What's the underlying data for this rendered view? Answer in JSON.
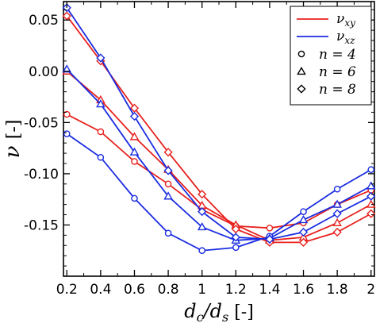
{
  "chart_data": {
    "type": "line",
    "xlabel": "d_c/d_s [-]",
    "ylabel": "ν [-]",
    "x": [
      0.2,
      0.4,
      0.6,
      0.8,
      1.0,
      1.2,
      1.4,
      1.6,
      1.8,
      2.0
    ],
    "xticks": [
      "0.2",
      "0.4",
      "0.6",
      "0.8",
      "1",
      "1.2",
      "1.4",
      "1.6",
      "1.8",
      "2"
    ],
    "yticks": [
      "0.05",
      "0.00",
      "-0.05",
      "-0.10",
      "-0.15"
    ],
    "ytick_values": [
      0.05,
      0.0,
      -0.05,
      -0.1,
      -0.15
    ],
    "xlim": [
      0.18,
      2.02
    ],
    "ylim": [
      -0.2,
      0.068
    ],
    "grid": false,
    "legend_position": "top-right",
    "legend": {
      "lines": [
        {
          "label": "ν_xy",
          "color": "#e8221e"
        },
        {
          "label": "ν_xz",
          "color": "#1a2ce0"
        }
      ],
      "markers": [
        {
          "label": "n = 4",
          "marker": "circle"
        },
        {
          "label": "n = 6",
          "marker": "triangle"
        },
        {
          "label": "n = 8",
          "marker": "diamond"
        }
      ]
    },
    "series": [
      {
        "component": "xy",
        "n": 4,
        "marker": "circle",
        "color": "#e8221e",
        "values": [
          -0.042,
          -0.059,
          -0.088,
          -0.11,
          -0.135,
          -0.151,
          -0.153,
          -0.148,
          -0.13,
          -0.116
        ]
      },
      {
        "component": "xz",
        "n": 4,
        "marker": "circle",
        "color": "#1a2ce0",
        "values": [
          -0.061,
          -0.084,
          -0.124,
          -0.158,
          -0.175,
          -0.172,
          -0.161,
          -0.137,
          -0.115,
          -0.096
        ]
      },
      {
        "component": "xy",
        "n": 6,
        "marker": "triangle",
        "color": "#e8221e",
        "values": [
          0.0,
          -0.028,
          -0.064,
          -0.096,
          -0.131,
          -0.15,
          -0.165,
          -0.162,
          -0.148,
          -0.13
        ]
      },
      {
        "component": "xz",
        "n": 6,
        "marker": "triangle",
        "color": "#1a2ce0",
        "values": [
          0.002,
          -0.032,
          -0.079,
          -0.122,
          -0.152,
          -0.165,
          -0.163,
          -0.145,
          -0.13,
          -0.112
        ]
      },
      {
        "component": "xy",
        "n": 8,
        "marker": "diamond",
        "color": "#e8221e",
        "values": [
          0.054,
          0.01,
          -0.036,
          -0.079,
          -0.12,
          -0.154,
          -0.167,
          -0.167,
          -0.157,
          -0.139
        ]
      },
      {
        "component": "xz",
        "n": 8,
        "marker": "diamond",
        "color": "#1a2ce0",
        "values": [
          0.062,
          0.013,
          -0.044,
          -0.097,
          -0.137,
          -0.162,
          -0.164,
          -0.157,
          -0.139,
          -0.122
        ]
      }
    ]
  }
}
